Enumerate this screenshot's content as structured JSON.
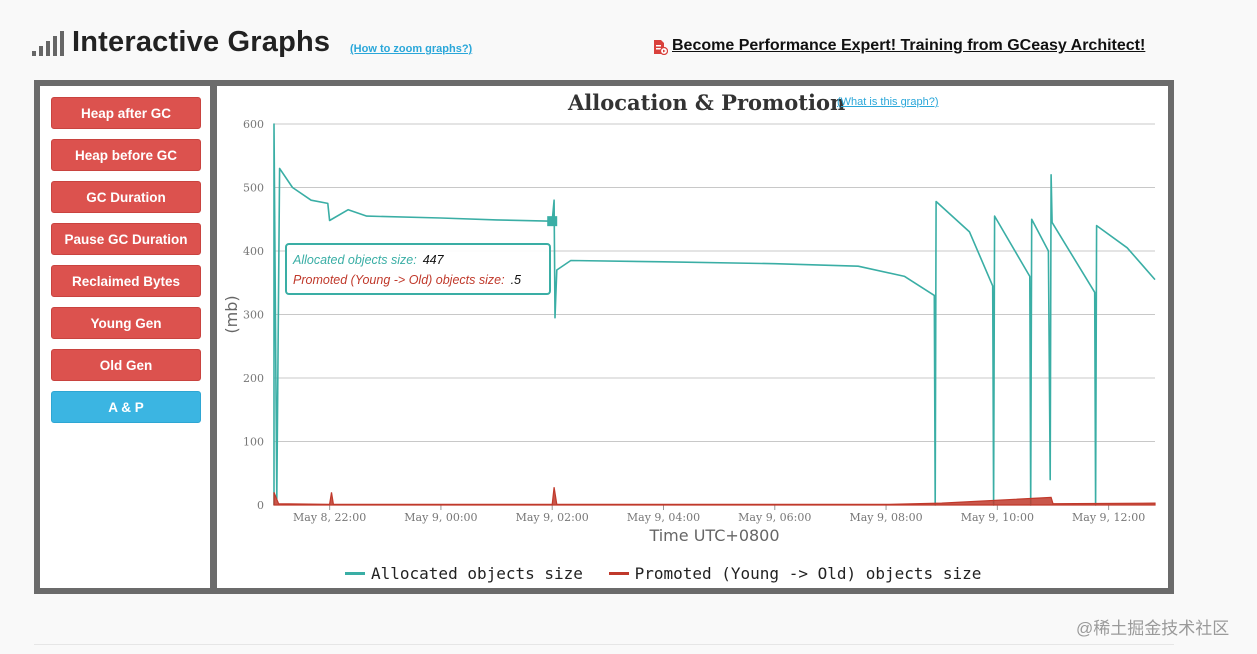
{
  "header": {
    "title": "Interactive Graphs",
    "zoom_link": "(How to zoom graphs?)",
    "training_link": "Become Performance Expert! Training from GCeasy Architect!"
  },
  "sidebar": {
    "buttons": [
      {
        "label": "Heap after GC"
      },
      {
        "label": "Heap before GC"
      },
      {
        "label": "GC Duration"
      },
      {
        "label": "Pause GC Duration"
      },
      {
        "label": "Reclaimed Bytes"
      },
      {
        "label": "Young Gen"
      },
      {
        "label": "Old Gen"
      },
      {
        "label": "A & P"
      }
    ],
    "active_label": "A & P"
  },
  "chart": {
    "title": "Allocation & Promotion",
    "what_link": "(What is this graph?)",
    "tooltip": {
      "allocated_label": "Allocated objects size:",
      "allocated_value": "447",
      "promoted_label": "Promoted (Young -> Old) objects size:",
      "promoted_value": ".5"
    },
    "legend": {
      "allocated": "Allocated objects size",
      "promoted": "Promoted (Young -> Old) objects size"
    }
  },
  "chart_data": {
    "type": "line",
    "xlabel": "Time UTC+0800",
    "ylabel": "(mb)",
    "ylim": [
      0,
      600
    ],
    "yticks": [
      0,
      100,
      200,
      300,
      400,
      500,
      600
    ],
    "xticks": [
      "May 8, 22:00",
      "May 9, 00:00",
      "May 9, 02:00",
      "May 9, 04:00",
      "May 9, 06:00",
      "May 9, 08:00",
      "May 9, 10:00",
      "May 9, 12:00"
    ],
    "xlim": [
      "May 8, 21:00",
      "May 9, 12:50"
    ],
    "grid": true,
    "legend_position": "bottom",
    "series": [
      {
        "name": "Allocated objects size",
        "color": "#3aaea5",
        "points": [
          [
            "May 8, 21:00",
            0
          ],
          [
            "May 8, 21:00",
            600
          ],
          [
            "May 8, 21:03",
            10
          ],
          [
            "May 8, 21:06",
            530
          ],
          [
            "May 8, 21:20",
            500
          ],
          [
            "May 8, 21:40",
            480
          ],
          [
            "May 8, 21:58",
            475
          ],
          [
            "May 8, 22:00",
            448
          ],
          [
            "May 8, 22:20",
            465
          ],
          [
            "May 8, 22:40",
            455
          ],
          [
            "May 9, 00:00",
            452
          ],
          [
            "May 9, 01:00",
            449
          ],
          [
            "May 9, 02:00",
            447
          ],
          [
            "May 9, 02:02",
            480
          ],
          [
            "May 9, 02:03",
            295
          ],
          [
            "May 9, 02:05",
            370
          ],
          [
            "May 9, 02:20",
            385
          ],
          [
            "May 9, 04:00",
            383
          ],
          [
            "May 9, 06:00",
            380
          ],
          [
            "May 9, 07:30",
            376
          ],
          [
            "May 9, 08:20",
            360
          ],
          [
            "May 9, 08:52",
            330
          ],
          [
            "May 9, 08:53",
            0
          ],
          [
            "May 9, 08:54",
            478
          ],
          [
            "May 9, 09:30",
            430
          ],
          [
            "May 9, 09:55",
            345
          ],
          [
            "May 9, 09:56",
            0
          ],
          [
            "May 9, 09:57",
            455
          ],
          [
            "May 9, 10:35",
            360
          ],
          [
            "May 9, 10:36",
            0
          ],
          [
            "May 9, 10:37",
            450
          ],
          [
            "May 9, 10:55",
            400
          ],
          [
            "May 9, 10:57",
            40
          ],
          [
            "May 9, 10:58",
            520
          ],
          [
            "May 9, 10:59",
            445
          ],
          [
            "May 9, 11:45",
            335
          ],
          [
            "May 9, 11:46",
            0
          ],
          [
            "May 9, 11:47",
            440
          ],
          [
            "May 9, 12:20",
            405
          ],
          [
            "May 9, 12:50",
            355
          ]
        ]
      },
      {
        "name": "Promoted (Young -> Old) objects size",
        "color": "#c0392b",
        "points": [
          [
            "May 8, 21:00",
            20
          ],
          [
            "May 8, 21:05",
            2
          ],
          [
            "May 8, 22:00",
            1
          ],
          [
            "May 8, 22:02",
            20
          ],
          [
            "May 8, 22:04",
            1
          ],
          [
            "May 9, 02:00",
            1
          ],
          [
            "May 9, 02:02",
            28
          ],
          [
            "May 9, 02:05",
            1
          ],
          [
            "May 9, 08:00",
            1
          ],
          [
            "May 9, 09:00",
            3
          ],
          [
            "May 9, 10:58",
            12
          ],
          [
            "May 9, 11:00",
            2
          ],
          [
            "May 9, 12:50",
            3
          ]
        ]
      }
    ]
  }
}
